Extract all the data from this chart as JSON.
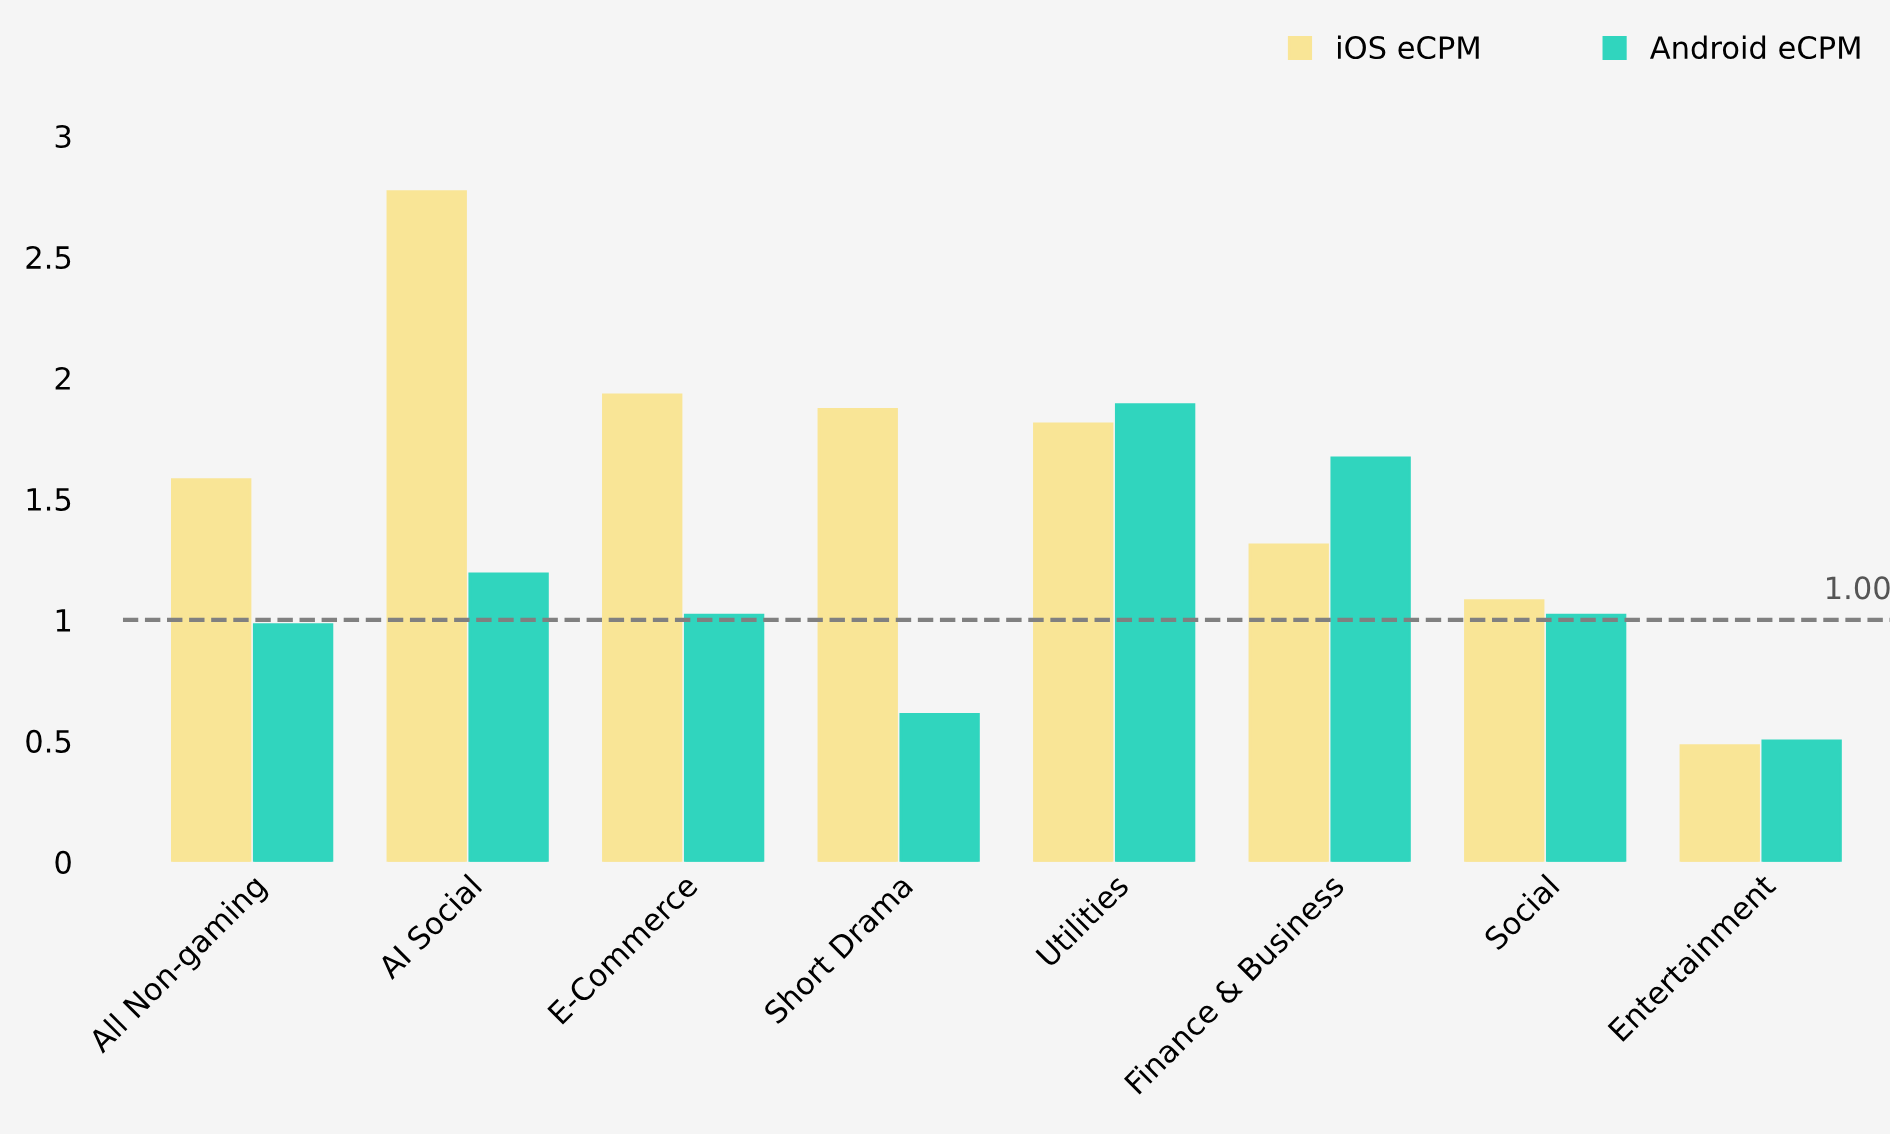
{
  "chart_data": {
    "type": "bar",
    "categories": [
      "All Non-gaming",
      "AI Social",
      "E-Commerce",
      "Short Drama",
      "Utilities",
      "Finance & Business",
      "Social",
      "Entertainment"
    ],
    "series": [
      {
        "name": "iOS eCPM",
        "color": "#f9e596",
        "values": [
          1.58,
          2.77,
          1.93,
          1.87,
          1.81,
          1.31,
          1.08,
          0.48
        ]
      },
      {
        "name": "Android eCPM",
        "color": "#30d5be",
        "values": [
          0.98,
          1.19,
          1.02,
          0.61,
          1.89,
          1.67,
          1.02,
          0.5
        ]
      }
    ],
    "ylim": [
      0,
      3
    ],
    "yticks": [
      0,
      0.5,
      1,
      1.5,
      2,
      2.5,
      3
    ],
    "ref_lines": [
      {
        "axis": "y",
        "value": 1,
        "label": "1.00",
        "color": "#808080",
        "line_style": "dashed"
      }
    ],
    "grid": false,
    "legend": "top right"
  }
}
